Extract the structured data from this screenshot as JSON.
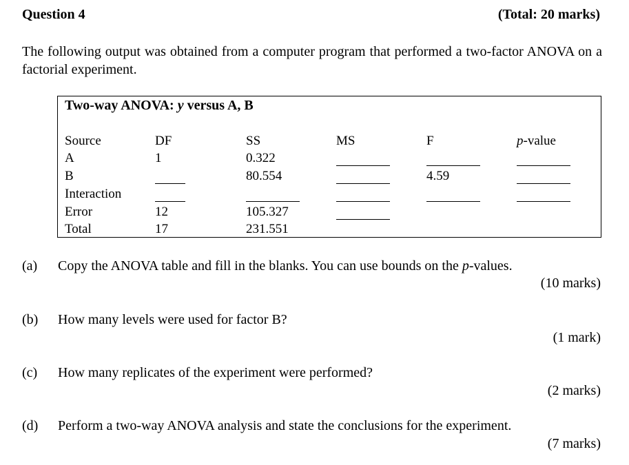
{
  "header": {
    "question": "Question 4",
    "total": "(Total: 20 marks)"
  },
  "intro": "The following output was obtained from a computer program that performed a two-factor ANOVA on a factorial experiment.",
  "anova_box": {
    "title_prefix": "Two-way ANOVA: ",
    "title_var": "y",
    "title_suffix": " versus A, B",
    "headers": {
      "source": "Source",
      "df": "DF",
      "ss": "SS",
      "ms": "MS",
      "f": "F",
      "p_italic": "p",
      "p_rest": "-value"
    },
    "rows": [
      {
        "source": "A",
        "df": "1",
        "ss": "0.322",
        "f": ""
      },
      {
        "source": "B",
        "df": "",
        "ss": "80.554",
        "f": "4.59"
      },
      {
        "source": "Interaction",
        "df": "",
        "ss": "",
        "f": ""
      },
      {
        "source": "Error",
        "df": "12",
        "ss": "105.327",
        "f": ""
      },
      {
        "source": "Total",
        "df": "17",
        "ss": "231.551",
        "f": ""
      }
    ]
  },
  "questions": [
    {
      "num": "(a)",
      "text_before": "Copy the ANOVA table and fill in the blanks. You can use bounds on the ",
      "text_italic": "p",
      "text_after": "-values.",
      "marks": "(10 marks)"
    },
    {
      "num": "(b)",
      "text": "How many levels were used for factor B?",
      "marks": "(1 mark)"
    },
    {
      "num": "(c)",
      "text": "How many replicates of the experiment were performed?",
      "marks": "(2 marks)"
    },
    {
      "num": "(d)",
      "text": "Perform a two-way ANOVA analysis and state the conclusions for the experiment.",
      "marks": "(7 marks)"
    }
  ]
}
